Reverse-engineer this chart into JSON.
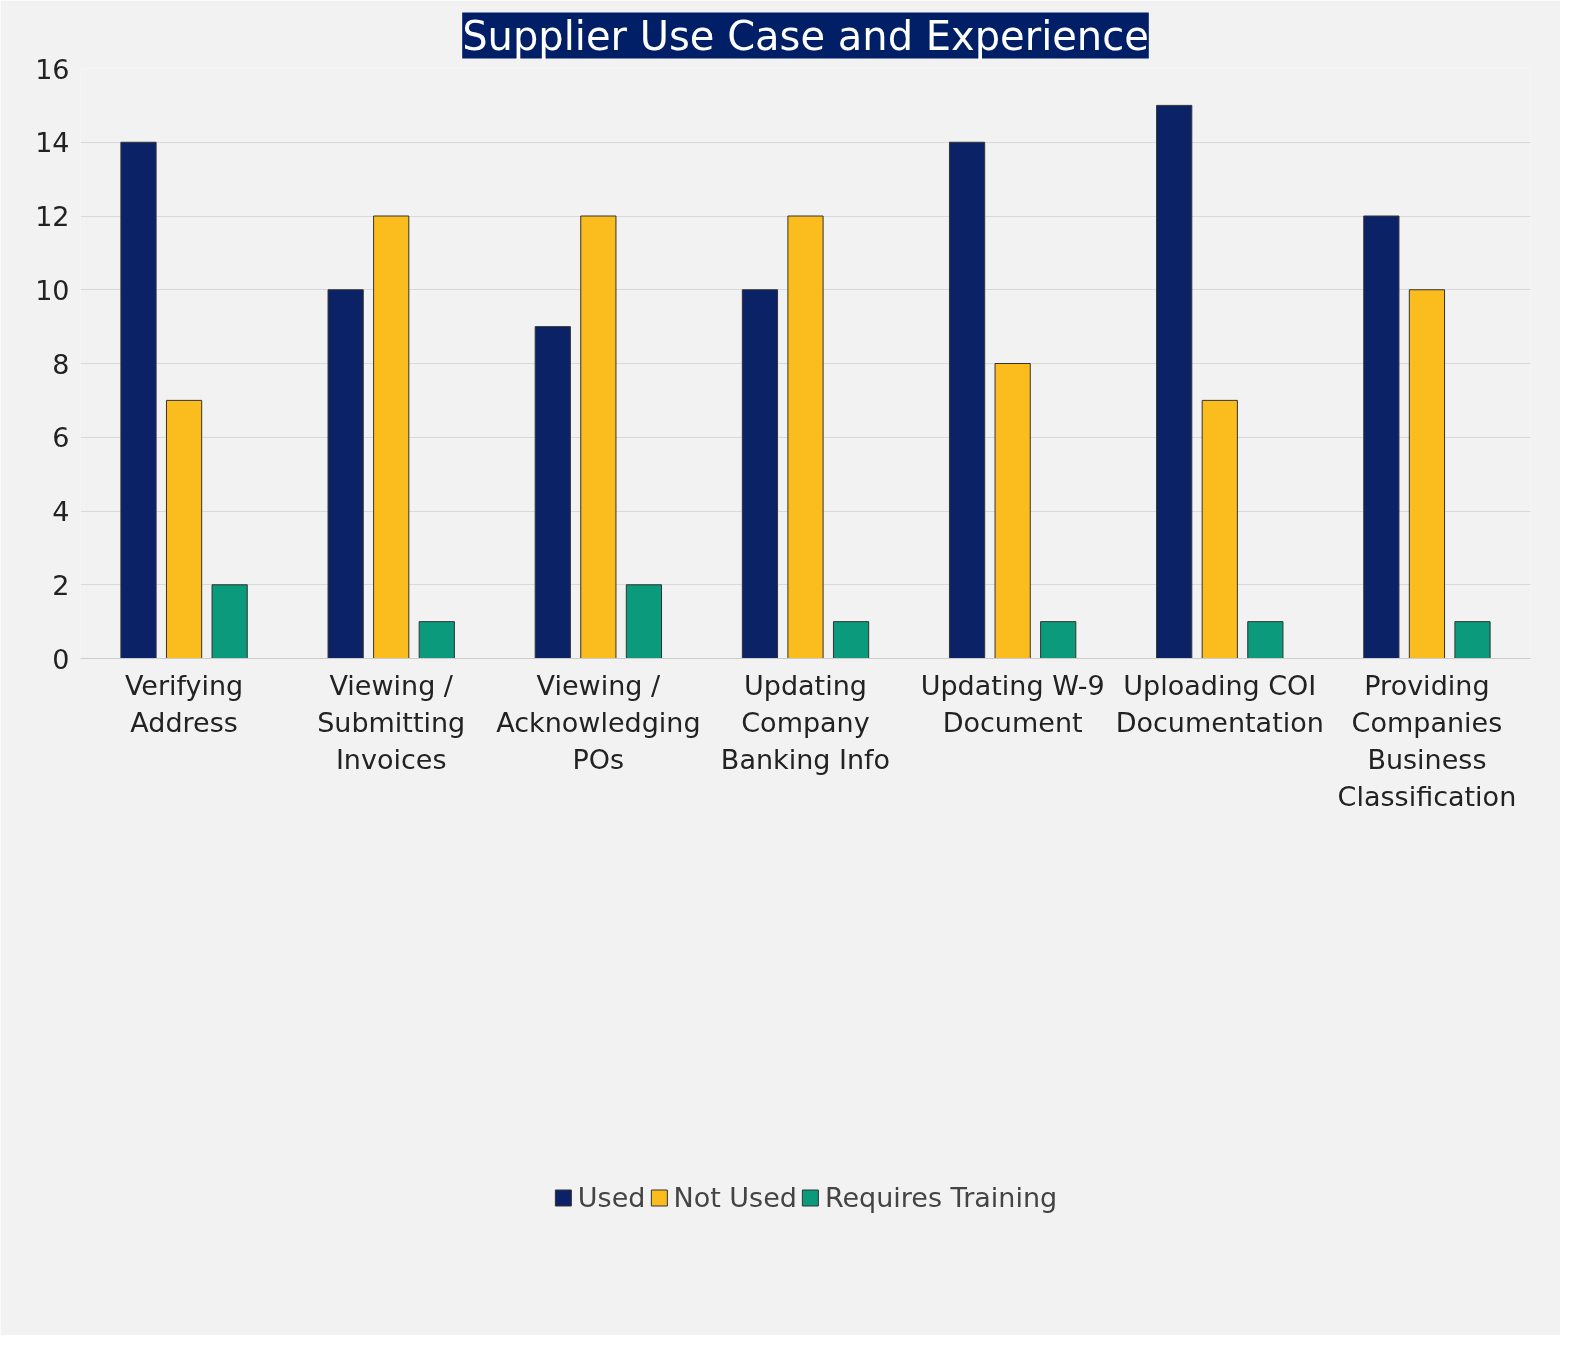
{
  "chart_data": {
    "type": "bar",
    "title": "Supplier Use Case and Experience",
    "categories": [
      "Verifying\nAddress",
      "Viewing /\nSubmitting\nInvoices",
      "Viewing /\nAcknowledging\nPOs",
      "Updating\nCompany\nBanking Info",
      "Updating W-9\nDocument",
      "Uploading COI\nDocumentation",
      "Providing\nCompanies\nBusiness\nClassification"
    ],
    "series": [
      {
        "name": "Used",
        "color": "#0b2266",
        "values": [
          14,
          10,
          9,
          10,
          14,
          15,
          12
        ]
      },
      {
        "name": "Not Used",
        "color": "#fbbd1e",
        "values": [
          7,
          12,
          12,
          12,
          8,
          7,
          10
        ]
      },
      {
        "name": "Requires Training",
        "color": "#0b9a7c",
        "values": [
          2,
          1,
          2,
          1,
          1,
          1,
          1
        ]
      }
    ],
    "ylim": [
      0,
      16
    ],
    "yticks": [
      0,
      2,
      4,
      6,
      8,
      10,
      12,
      14,
      16
    ],
    "grid": "y",
    "legend": "bottom"
  }
}
